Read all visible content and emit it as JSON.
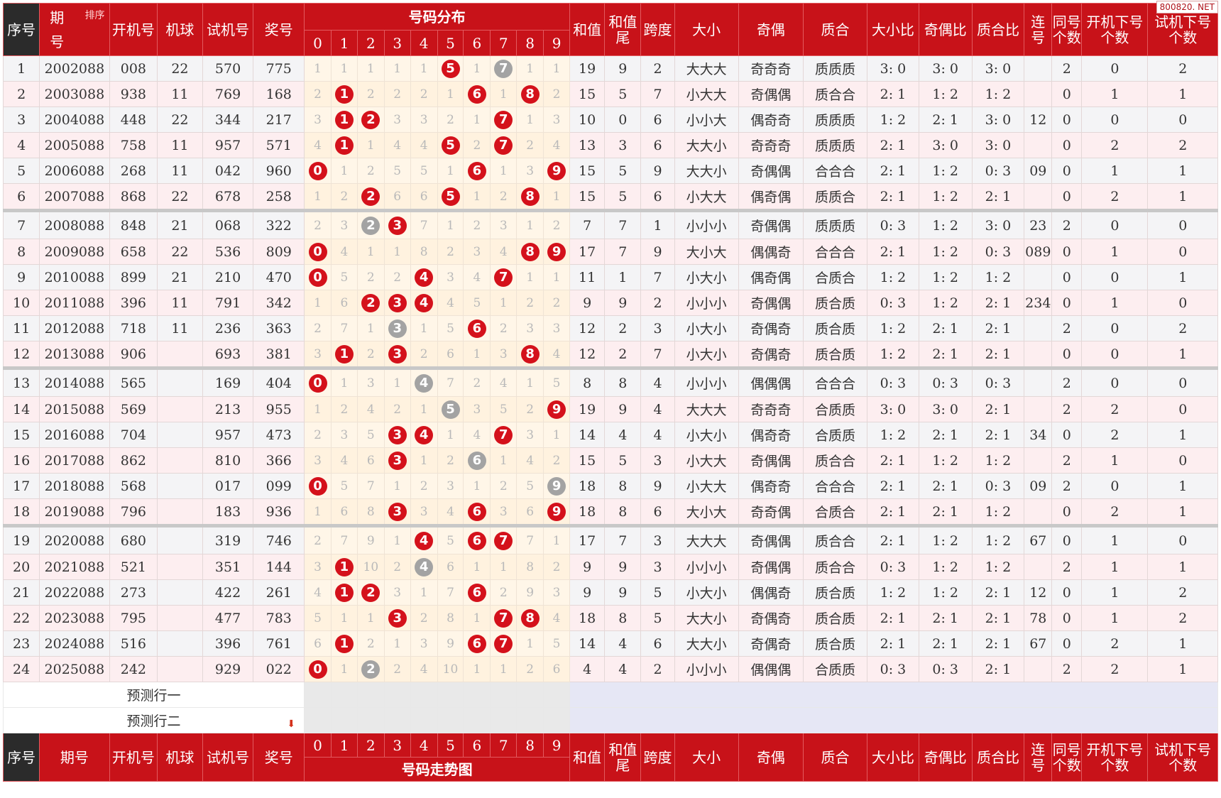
{
  "watermark": "800820. NET",
  "header": {
    "seq": "序号",
    "period": "期号",
    "sort": "排序",
    "open": "开机号",
    "machine": "机球",
    "trial": "试机号",
    "prize": "奖号",
    "dist": "号码分布",
    "trend": "号码走势图",
    "digits": [
      "0",
      "1",
      "2",
      "3",
      "4",
      "5",
      "6",
      "7",
      "8",
      "9"
    ],
    "sum": "和值",
    "sumtail": "和值尾",
    "span": "跨度",
    "size": "大小",
    "oddeven": "奇偶",
    "prime": "质合",
    "size_ratio": "大小比",
    "oe_ratio": "奇偶比",
    "pc_ratio": "质合比",
    "consec": "连号",
    "same": "同号个数",
    "open_next": "开机下号个数",
    "trial_next": "试机下号个数"
  },
  "rows": [
    {
      "seq": "1",
      "period": "2002088",
      "open": "008",
      "machine": "22",
      "trial": "570",
      "prize": "775",
      "cells": [
        "1",
        "1",
        "1",
        "1",
        "1",
        "5",
        "1",
        "7",
        "1",
        "1"
      ],
      "marks": [
        "",
        "",
        "",
        "",
        "",
        "r",
        "",
        "g",
        "",
        ""
      ],
      "sum": "19",
      "tail": "9",
      "span": "2",
      "size": "大大大",
      "oe": "奇奇奇",
      "pc": "质质质",
      "sr": "3: 0",
      "or": "3: 0",
      "pr": "3: 0",
      "consec": "",
      "same": "2",
      "on": "0",
      "tn": "2"
    },
    {
      "seq": "2",
      "period": "2003088",
      "open": "938",
      "machine": "11",
      "trial": "769",
      "prize": "168",
      "cells": [
        "2",
        "1",
        "2",
        "2",
        "2",
        "1",
        "6",
        "1",
        "8",
        "2"
      ],
      "marks": [
        "",
        "r",
        "",
        "",
        "",
        "",
        "r",
        "",
        "r",
        ""
      ],
      "sum": "15",
      "tail": "5",
      "span": "7",
      "size": "小大大",
      "oe": "奇偶偶",
      "pc": "质合合",
      "sr": "2: 1",
      "or": "1: 2",
      "pr": "1: 2",
      "consec": "",
      "same": "0",
      "on": "1",
      "tn": "1"
    },
    {
      "seq": "3",
      "period": "2004088",
      "open": "448",
      "machine": "22",
      "trial": "344",
      "prize": "217",
      "cells": [
        "3",
        "1",
        "2",
        "3",
        "3",
        "2",
        "1",
        "7",
        "1",
        "3"
      ],
      "marks": [
        "",
        "r",
        "r",
        "",
        "",
        "",
        "",
        "r",
        "",
        ""
      ],
      "sum": "10",
      "tail": "0",
      "span": "6",
      "size": "小小大",
      "oe": "偶奇奇",
      "pc": "质质质",
      "sr": "1: 2",
      "or": "2: 1",
      "pr": "3: 0",
      "consec": "12",
      "same": "0",
      "on": "0",
      "tn": "0"
    },
    {
      "seq": "4",
      "period": "2005088",
      "open": "758",
      "machine": "11",
      "trial": "957",
      "prize": "571",
      "cells": [
        "4",
        "1",
        "1",
        "4",
        "4",
        "5",
        "2",
        "7",
        "2",
        "4"
      ],
      "marks": [
        "",
        "r",
        "",
        "",
        "",
        "r",
        "",
        "r",
        "",
        ""
      ],
      "sum": "13",
      "tail": "3",
      "span": "6",
      "size": "大大小",
      "oe": "奇奇奇",
      "pc": "质质质",
      "sr": "2: 1",
      "or": "3: 0",
      "pr": "3: 0",
      "consec": "",
      "same": "0",
      "on": "2",
      "tn": "2"
    },
    {
      "seq": "5",
      "period": "2006088",
      "open": "268",
      "machine": "11",
      "trial": "042",
      "prize": "960",
      "cells": [
        "0",
        "1",
        "2",
        "5",
        "5",
        "1",
        "6",
        "1",
        "3",
        "9"
      ],
      "marks": [
        "r",
        "",
        "",
        "",
        "",
        "",
        "r",
        "",
        "",
        "r"
      ],
      "sum": "15",
      "tail": "5",
      "span": "9",
      "size": "大大小",
      "oe": "奇偶偶",
      "pc": "合合合",
      "sr": "2: 1",
      "or": "1: 2",
      "pr": "0: 3",
      "consec": "09",
      "same": "0",
      "on": "1",
      "tn": "1"
    },
    {
      "seq": "6",
      "period": "2007088",
      "open": "868",
      "machine": "22",
      "trial": "678",
      "prize": "258",
      "cells": [
        "1",
        "2",
        "2",
        "6",
        "6",
        "5",
        "1",
        "2",
        "8",
        "1"
      ],
      "marks": [
        "",
        "",
        "r",
        "",
        "",
        "r",
        "",
        "",
        "r",
        ""
      ],
      "sum": "15",
      "tail": "5",
      "span": "6",
      "size": "小大大",
      "oe": "偶奇偶",
      "pc": "质质合",
      "sr": "2: 1",
      "or": "1: 2",
      "pr": "2: 1",
      "consec": "",
      "same": "0",
      "on": "2",
      "tn": "1"
    },
    {
      "seq": "7",
      "period": "2008088",
      "open": "848",
      "machine": "21",
      "trial": "068",
      "prize": "322",
      "cells": [
        "2",
        "3",
        "2",
        "3",
        "7",
        "1",
        "2",
        "3",
        "1",
        "2"
      ],
      "marks": [
        "",
        "",
        "g",
        "r",
        "",
        "",
        "",
        "",
        "",
        ""
      ],
      "sum": "7",
      "tail": "7",
      "span": "1",
      "size": "小小小",
      "oe": "奇偶偶",
      "pc": "质质质",
      "sr": "0: 3",
      "or": "1: 2",
      "pr": "3: 0",
      "consec": "23",
      "same": "2",
      "on": "0",
      "tn": "0"
    },
    {
      "seq": "8",
      "period": "2009088",
      "open": "658",
      "machine": "22",
      "trial": "536",
      "prize": "809",
      "cells": [
        "0",
        "4",
        "1",
        "1",
        "8",
        "2",
        "3",
        "4",
        "8",
        "9"
      ],
      "marks": [
        "r",
        "",
        "",
        "",
        "",
        "",
        "",
        "",
        "r",
        "r"
      ],
      "sum": "17",
      "tail": "7",
      "span": "9",
      "size": "大小大",
      "oe": "偶偶奇",
      "pc": "合合合",
      "sr": "2: 1",
      "or": "1: 2",
      "pr": "0: 3",
      "consec": "089",
      "same": "0",
      "on": "1",
      "tn": "0"
    },
    {
      "seq": "9",
      "period": "2010088",
      "open": "899",
      "machine": "21",
      "trial": "210",
      "prize": "470",
      "cells": [
        "0",
        "5",
        "2",
        "2",
        "4",
        "3",
        "4",
        "7",
        "1",
        "1"
      ],
      "marks": [
        "r",
        "",
        "",
        "",
        "r",
        "",
        "",
        "r",
        "",
        ""
      ],
      "sum": "11",
      "tail": "1",
      "span": "7",
      "size": "小大小",
      "oe": "偶奇偶",
      "pc": "合质合",
      "sr": "1: 2",
      "or": "1: 2",
      "pr": "1: 2",
      "consec": "",
      "same": "0",
      "on": "0",
      "tn": "1"
    },
    {
      "seq": "10",
      "period": "2011088",
      "open": "396",
      "machine": "11",
      "trial": "791",
      "prize": "342",
      "cells": [
        "1",
        "6",
        "2",
        "3",
        "4",
        "4",
        "5",
        "1",
        "2",
        "2"
      ],
      "marks": [
        "",
        "",
        "r",
        "r",
        "r",
        "",
        "",
        "",
        "",
        ""
      ],
      "sum": "9",
      "tail": "9",
      "span": "2",
      "size": "小小小",
      "oe": "奇偶偶",
      "pc": "质合质",
      "sr": "0: 3",
      "or": "1: 2",
      "pr": "2: 1",
      "consec": "234",
      "same": "0",
      "on": "1",
      "tn": "0"
    },
    {
      "seq": "11",
      "period": "2012088",
      "open": "718",
      "machine": "11",
      "trial": "236",
      "prize": "363",
      "cells": [
        "2",
        "7",
        "1",
        "3",
        "1",
        "5",
        "6",
        "2",
        "3",
        "3"
      ],
      "marks": [
        "",
        "",
        "",
        "g",
        "",
        "",
        "r",
        "",
        "",
        ""
      ],
      "sum": "12",
      "tail": "2",
      "span": "3",
      "size": "小大小",
      "oe": "奇偶奇",
      "pc": "质合质",
      "sr": "1: 2",
      "or": "2: 1",
      "pr": "2: 1",
      "consec": "",
      "same": "2",
      "on": "0",
      "tn": "2"
    },
    {
      "seq": "12",
      "period": "2013088",
      "open": "906",
      "machine": "",
      "trial": "693",
      "prize": "381",
      "cells": [
        "3",
        "1",
        "2",
        "3",
        "2",
        "6",
        "1",
        "3",
        "8",
        "4"
      ],
      "marks": [
        "",
        "r",
        "",
        "r",
        "",
        "",
        "",
        "",
        "r",
        ""
      ],
      "sum": "12",
      "tail": "2",
      "span": "7",
      "size": "小大小",
      "oe": "奇偶奇",
      "pc": "质合质",
      "sr": "1: 2",
      "or": "2: 1",
      "pr": "2: 1",
      "consec": "",
      "same": "0",
      "on": "0",
      "tn": "1"
    },
    {
      "seq": "13",
      "period": "2014088",
      "open": "565",
      "machine": "",
      "trial": "169",
      "prize": "404",
      "cells": [
        "0",
        "1",
        "3",
        "1",
        "4",
        "7",
        "2",
        "4",
        "1",
        "5"
      ],
      "marks": [
        "r",
        "",
        "",
        "",
        "g",
        "",
        "",
        "",
        "",
        ""
      ],
      "sum": "8",
      "tail": "8",
      "span": "4",
      "size": "小小小",
      "oe": "偶偶偶",
      "pc": "合合合",
      "sr": "0: 3",
      "or": "0: 3",
      "pr": "0: 3",
      "consec": "",
      "same": "2",
      "on": "0",
      "tn": "0"
    },
    {
      "seq": "14",
      "period": "2015088",
      "open": "569",
      "machine": "",
      "trial": "213",
      "prize": "955",
      "cells": [
        "1",
        "2",
        "4",
        "2",
        "1",
        "5",
        "3",
        "5",
        "2",
        "9"
      ],
      "marks": [
        "",
        "",
        "",
        "",
        "",
        "g",
        "",
        "",
        "",
        "r"
      ],
      "sum": "19",
      "tail": "9",
      "span": "4",
      "size": "大大大",
      "oe": "奇奇奇",
      "pc": "合质质",
      "sr": "3: 0",
      "or": "3: 0",
      "pr": "2: 1",
      "consec": "",
      "same": "2",
      "on": "2",
      "tn": "0"
    },
    {
      "seq": "15",
      "period": "2016088",
      "open": "704",
      "machine": "",
      "trial": "957",
      "prize": "473",
      "cells": [
        "2",
        "3",
        "5",
        "3",
        "4",
        "1",
        "4",
        "7",
        "3",
        "1"
      ],
      "marks": [
        "",
        "",
        "",
        "r",
        "r",
        "",
        "",
        "r",
        "",
        ""
      ],
      "sum": "14",
      "tail": "4",
      "span": "4",
      "size": "小大小",
      "oe": "偶奇奇",
      "pc": "合质质",
      "sr": "1: 2",
      "or": "2: 1",
      "pr": "2: 1",
      "consec": "34",
      "same": "0",
      "on": "2",
      "tn": "1"
    },
    {
      "seq": "16",
      "period": "2017088",
      "open": "862",
      "machine": "",
      "trial": "810",
      "prize": "366",
      "cells": [
        "3",
        "4",
        "6",
        "3",
        "1",
        "2",
        "6",
        "1",
        "4",
        "2"
      ],
      "marks": [
        "",
        "",
        "",
        "r",
        "",
        "",
        "g",
        "",
        "",
        ""
      ],
      "sum": "15",
      "tail": "5",
      "span": "3",
      "size": "小大大",
      "oe": "奇偶偶",
      "pc": "质合合",
      "sr": "2: 1",
      "or": "1: 2",
      "pr": "1: 2",
      "consec": "",
      "same": "2",
      "on": "1",
      "tn": "0"
    },
    {
      "seq": "17",
      "period": "2018088",
      "open": "568",
      "machine": "",
      "trial": "017",
      "prize": "099",
      "cells": [
        "0",
        "5",
        "7",
        "1",
        "2",
        "3",
        "1",
        "2",
        "5",
        "9"
      ],
      "marks": [
        "r",
        "",
        "",
        "",
        "",
        "",
        "",
        "",
        "",
        "g"
      ],
      "sum": "18",
      "tail": "8",
      "span": "9",
      "size": "小大大",
      "oe": "偶奇奇",
      "pc": "合合合",
      "sr": "2: 1",
      "or": "2: 1",
      "pr": "0: 3",
      "consec": "09",
      "same": "2",
      "on": "0",
      "tn": "1"
    },
    {
      "seq": "18",
      "period": "2019088",
      "open": "796",
      "machine": "",
      "trial": "183",
      "prize": "936",
      "cells": [
        "1",
        "6",
        "8",
        "3",
        "3",
        "4",
        "6",
        "3",
        "6",
        "9"
      ],
      "marks": [
        "",
        "",
        "",
        "r",
        "",
        "",
        "r",
        "",
        "",
        "r"
      ],
      "sum": "18",
      "tail": "8",
      "span": "6",
      "size": "大小大",
      "oe": "奇奇偶",
      "pc": "合质合",
      "sr": "2: 1",
      "or": "2: 1",
      "pr": "1: 2",
      "consec": "",
      "same": "0",
      "on": "2",
      "tn": "1"
    },
    {
      "seq": "19",
      "period": "2020088",
      "open": "680",
      "machine": "",
      "trial": "319",
      "prize": "746",
      "cells": [
        "2",
        "7",
        "9",
        "1",
        "4",
        "5",
        "6",
        "7",
        "7",
        "1"
      ],
      "marks": [
        "",
        "",
        "",
        "",
        "r",
        "",
        "r",
        "r",
        "",
        ""
      ],
      "sum": "17",
      "tail": "7",
      "span": "3",
      "size": "大大大",
      "oe": "奇偶偶",
      "pc": "质合合",
      "sr": "2: 1",
      "or": "1: 2",
      "pr": "1: 2",
      "consec": "67",
      "same": "0",
      "on": "1",
      "tn": "0"
    },
    {
      "seq": "20",
      "period": "2021088",
      "open": "521",
      "machine": "",
      "trial": "351",
      "prize": "144",
      "cells": [
        "3",
        "1",
        "10",
        "2",
        "4",
        "6",
        "1",
        "1",
        "8",
        "2"
      ],
      "marks": [
        "",
        "r",
        "",
        "",
        "g",
        "",
        "",
        "",
        "",
        ""
      ],
      "sum": "9",
      "tail": "9",
      "span": "3",
      "size": "小小小",
      "oe": "奇偶偶",
      "pc": "质合合",
      "sr": "0: 3",
      "or": "1: 2",
      "pr": "1: 2",
      "consec": "",
      "same": "2",
      "on": "1",
      "tn": "1"
    },
    {
      "seq": "21",
      "period": "2022088",
      "open": "273",
      "machine": "",
      "trial": "422",
      "prize": "261",
      "cells": [
        "4",
        "1",
        "2",
        "3",
        "1",
        "7",
        "6",
        "2",
        "9",
        "3"
      ],
      "marks": [
        "",
        "r",
        "r",
        "",
        "",
        "",
        "r",
        "",
        "",
        ""
      ],
      "sum": "9",
      "tail": "9",
      "span": "5",
      "size": "小大小",
      "oe": "偶偶奇",
      "pc": "质合质",
      "sr": "1: 2",
      "or": "1: 2",
      "pr": "2: 1",
      "consec": "12",
      "same": "0",
      "on": "1",
      "tn": "2"
    },
    {
      "seq": "22",
      "period": "2023088",
      "open": "795",
      "machine": "",
      "trial": "477",
      "prize": "783",
      "cells": [
        "5",
        "1",
        "1",
        "3",
        "2",
        "8",
        "1",
        "7",
        "8",
        "4"
      ],
      "marks": [
        "",
        "",
        "",
        "r",
        "",
        "",
        "",
        "r",
        "r",
        ""
      ],
      "sum": "18",
      "tail": "8",
      "span": "5",
      "size": "大大小",
      "oe": "奇偶奇",
      "pc": "质合质",
      "sr": "2: 1",
      "or": "2: 1",
      "pr": "2: 1",
      "consec": "78",
      "same": "0",
      "on": "1",
      "tn": "2"
    },
    {
      "seq": "23",
      "period": "2024088",
      "open": "516",
      "machine": "",
      "trial": "396",
      "prize": "761",
      "cells": [
        "6",
        "1",
        "2",
        "1",
        "3",
        "9",
        "6",
        "7",
        "1",
        "5"
      ],
      "marks": [
        "",
        "r",
        "",
        "",
        "",
        "",
        "r",
        "r",
        "",
        ""
      ],
      "sum": "14",
      "tail": "4",
      "span": "6",
      "size": "大大小",
      "oe": "奇偶奇",
      "pc": "质合质",
      "sr": "2: 1",
      "or": "2: 1",
      "pr": "2: 1",
      "consec": "67",
      "same": "0",
      "on": "2",
      "tn": "1"
    },
    {
      "seq": "24",
      "period": "2025088",
      "open": "242",
      "machine": "",
      "trial": "929",
      "prize": "022",
      "cells": [
        "0",
        "1",
        "2",
        "2",
        "4",
        "10",
        "1",
        "1",
        "2",
        "6"
      ],
      "marks": [
        "r",
        "",
        "g",
        "",
        "",
        "",
        "",
        "",
        "",
        ""
      ],
      "sum": "4",
      "tail": "4",
      "span": "2",
      "size": "小小小",
      "oe": "偶偶偶",
      "pc": "合质质",
      "sr": "0: 3",
      "or": "0: 3",
      "pr": "2: 1",
      "consec": "",
      "same": "2",
      "on": "2",
      "tn": "1"
    }
  ],
  "predict": [
    "预测行一",
    "预测行二"
  ],
  "colors": {
    "header_red": "#c81219",
    "header_dark": "#2b2b2b",
    "ball_red": "#d4111b",
    "ball_gray": "#a3a3a3"
  }
}
